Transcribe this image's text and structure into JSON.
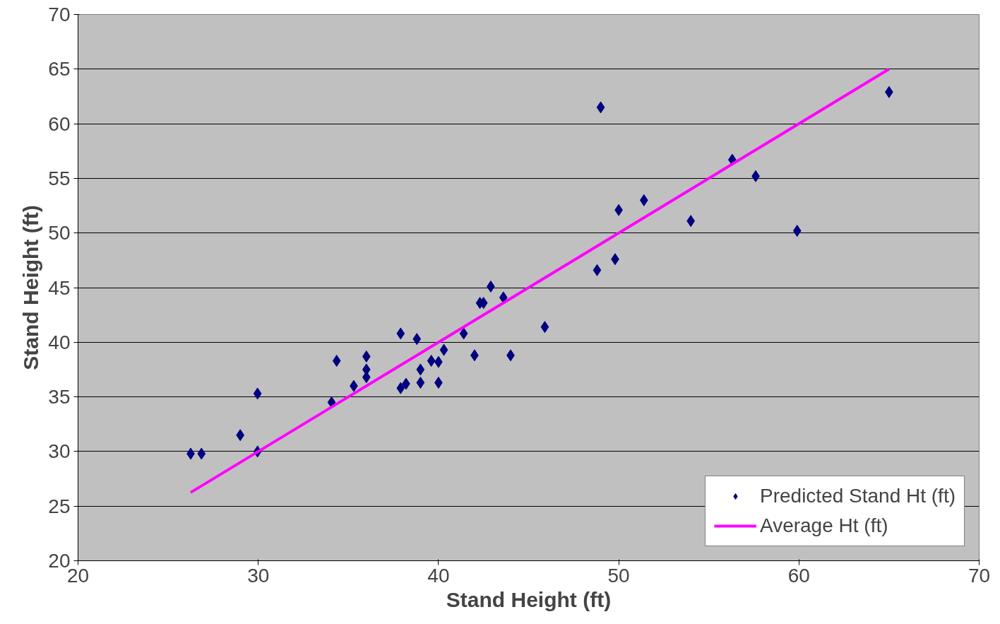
{
  "chart_data": {
    "type": "scatter",
    "xlabel": "Stand Height (ft)",
    "ylabel": "Stand Height (ft)",
    "xlim": [
      20,
      70
    ],
    "xticks": [
      20,
      30,
      40,
      50,
      60,
      70
    ],
    "ylim": [
      20,
      70
    ],
    "yticks": [
      20,
      25,
      30,
      35,
      40,
      45,
      50,
      55,
      60,
      65,
      70
    ],
    "grid": "y",
    "legend": "bottom right",
    "series": [
      {
        "name": "Predicted Stand Ht (ft)",
        "marker": "diamond",
        "color": "#000080",
        "x": [
          26.25,
          26.85,
          29.0,
          29.96,
          29.96,
          34.07,
          34.35,
          35.3,
          36.0,
          36.0,
          36.0,
          37.9,
          37.9,
          38.2,
          38.8,
          39.0,
          39.0,
          39.6,
          40.0,
          40.0,
          40.3,
          41.4,
          42.0,
          42.3,
          42.5,
          42.9,
          43.6,
          44.0,
          45.9,
          48.8,
          49.0,
          49.8,
          50.0,
          51.4,
          54.0,
          56.3,
          57.6,
          59.9,
          65.0
        ],
        "values": [
          29.8,
          29.8,
          31.5,
          35.3,
          30.0,
          34.5,
          38.3,
          36.0,
          38.7,
          37.5,
          36.8,
          40.8,
          35.8,
          36.2,
          40.3,
          37.5,
          36.3,
          38.3,
          38.2,
          36.3,
          39.3,
          40.8,
          38.8,
          43.6,
          43.6,
          45.1,
          44.1,
          38.8,
          41.4,
          46.6,
          61.5,
          47.6,
          52.1,
          53.0,
          51.1,
          56.7,
          55.2,
          50.2,
          62.9
        ]
      },
      {
        "name": "Average Ht (ft)",
        "type": "line",
        "marker": "none",
        "color": "#ff00ff",
        "x": [
          26.25,
          65.0
        ],
        "values": [
          26.25,
          65.0
        ]
      }
    ]
  }
}
